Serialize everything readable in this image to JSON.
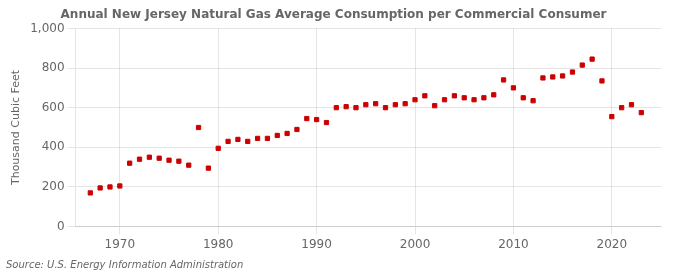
{
  "chart_data": {
    "type": "scatter",
    "title": "Annual New Jersey Natural Gas Average Consumption per Commercial Consumer",
    "ylabel": "Thousand Cubic Feet",
    "annotations": [
      "Source: U.S. Energy Information Administration"
    ],
    "color": "#cc0000",
    "marker": "square",
    "x": [
      1967,
      1968,
      1969,
      1970,
      1971,
      1972,
      1973,
      1974,
      1975,
      1976,
      1977,
      1978,
      1979,
      1980,
      1981,
      1982,
      1983,
      1984,
      1985,
      1986,
      1987,
      1988,
      1989,
      1990,
      1991,
      1992,
      1993,
      1994,
      1995,
      1996,
      1997,
      1998,
      1999,
      2000,
      2001,
      2002,
      2003,
      2004,
      2005,
      2006,
      2007,
      2008,
      2009,
      2010,
      2011,
      2012,
      2013,
      2014,
      2015,
      2016,
      2017,
      2018,
      2019,
      2020,
      2021,
      2022,
      2023
    ],
    "values": [
      170,
      195,
      200,
      205,
      320,
      340,
      350,
      345,
      335,
      330,
      310,
      500,
      295,
      395,
      430,
      440,
      430,
      445,
      445,
      460,
      470,
      490,
      545,
      540,
      525,
      600,
      605,
      600,
      615,
      620,
      600,
      615,
      620,
      640,
      660,
      610,
      640,
      660,
      650,
      640,
      650,
      665,
      740,
      700,
      650,
      635,
      750,
      755,
      760,
      780,
      815,
      845,
      735,
      555,
      600,
      615,
      575
    ],
    "xlim": [
      1965.5,
      2025
    ],
    "xticks": [
      1970,
      1980,
      1990,
      2000,
      2010,
      2020
    ],
    "ylim": [
      0,
      1000
    ],
    "yticks": [
      0,
      200,
      400,
      600,
      800,
      {
        "value": 1000,
        "label": "1,000"
      }
    ],
    "grid": true
  }
}
